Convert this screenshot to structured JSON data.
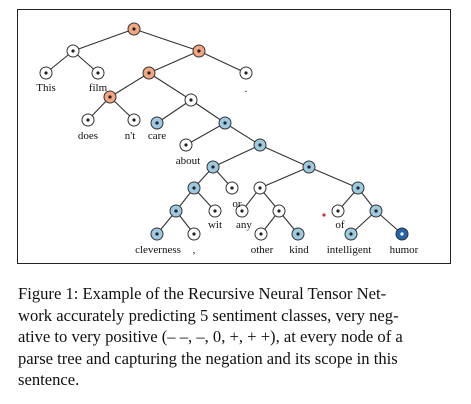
{
  "figure": {
    "words": {
      "this": "This",
      "film": "film",
      "does": "does",
      "nt": "n't",
      "care": "care",
      "about": "about",
      "cleverness": "cleverness",
      "comma": ",",
      "wit": "wit",
      "or": "or",
      "any": "any",
      "other": "other",
      "kind": "kind",
      "of": "of",
      "intelligent": "intelligent",
      "humor": "humor",
      "period": "."
    },
    "node_colors": {
      "very_negative": "#f4a582",
      "neutral": "#ffffff",
      "positive": "#9ecae1",
      "very_positive": "#2166ac"
    }
  },
  "caption": {
    "lines": [
      "Figure 1: Example of the Recursive Neural Tensor Net-",
      "work accurately predicting 5 sentiment classes, very neg-",
      "ative to very positive (– –, –, 0, +, + +), at every node of a",
      "parse tree and capturing the negation and its scope in this",
      "sentence."
    ]
  }
}
